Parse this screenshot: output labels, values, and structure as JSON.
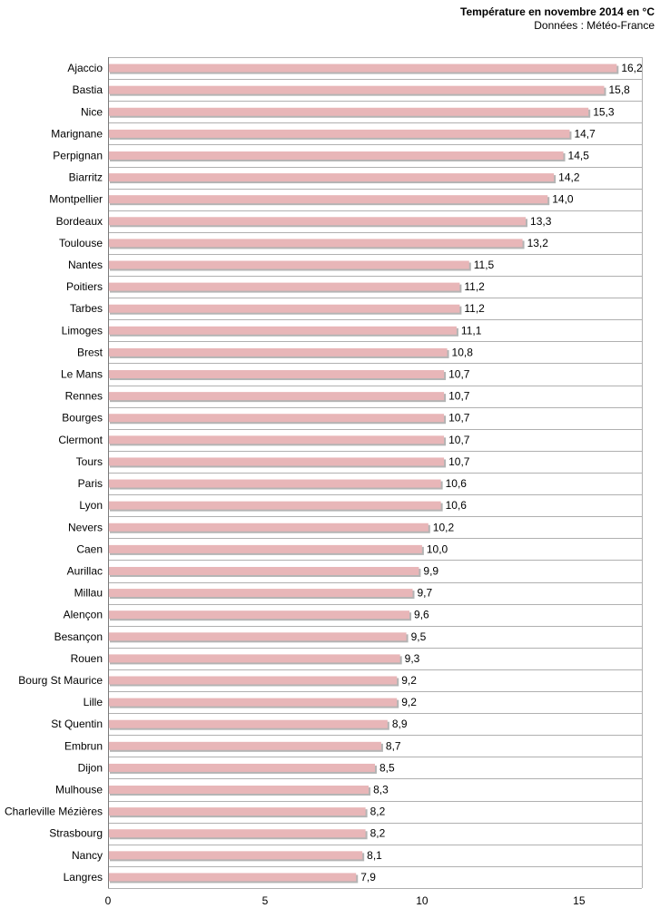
{
  "chart_data": {
    "type": "bar",
    "orientation": "horizontal",
    "title": "Température en novembre 2014 en °C",
    "subtitle": "Données : Météo-France",
    "xlabel": "",
    "ylabel": "",
    "xlim": [
      0,
      17
    ],
    "xticks": [
      "0",
      "5",
      "10",
      "15"
    ],
    "grid": "horizontal",
    "categories": [
      "Ajaccio",
      "Bastia",
      "Nice",
      "Marignane",
      "Perpignan",
      "Biarritz",
      "Montpellier",
      "Bordeaux",
      "Toulouse",
      "Nantes",
      "Poitiers",
      "Tarbes",
      "Limoges",
      "Brest",
      "Le Mans",
      "Rennes",
      "Bourges",
      "Clermont",
      "Tours",
      "Paris",
      "Lyon",
      "Nevers",
      "Caen",
      "Aurillac",
      "Millau",
      "Alençon",
      "Besançon",
      "Rouen",
      "Bourg St Maurice",
      "Lille",
      "St Quentin",
      "Embrun",
      "Dijon",
      "Mulhouse",
      "Charleville Mézières",
      "Strasbourg",
      "Nancy",
      "Langres"
    ],
    "values": [
      16.2,
      15.8,
      15.3,
      14.7,
      14.5,
      14.2,
      14.0,
      13.3,
      13.2,
      11.5,
      11.2,
      11.2,
      11.1,
      10.8,
      10.7,
      10.7,
      10.7,
      10.7,
      10.7,
      10.6,
      10.6,
      10.2,
      10.0,
      9.9,
      9.7,
      9.6,
      9.5,
      9.3,
      9.2,
      9.2,
      8.9,
      8.7,
      8.5,
      8.3,
      8.2,
      8.2,
      8.1,
      7.9
    ],
    "data_labels": [
      "16,2",
      "15,8",
      "15,3",
      "14,7",
      "14,5",
      "14,2",
      "14,0",
      "13,3",
      "13,2",
      "11,5",
      "11,2",
      "11,2",
      "11,1",
      "10,8",
      "10,7",
      "10,7",
      "10,7",
      "10,7",
      "10,7",
      "10,6",
      "10,6",
      "10,2",
      "10,0",
      "9,9",
      "9,7",
      "9,6",
      "9,5",
      "9,3",
      "9,2",
      "9,2",
      "8,9",
      "8,7",
      "8,5",
      "8,3",
      "8,2",
      "8,2",
      "8,1",
      "7,9"
    ],
    "colors": {
      "bar": "#e8b6b8",
      "bar_shadow": "#b4b4b4",
      "grid": "#b0b0b0",
      "axis": "#7a7a7a"
    }
  }
}
